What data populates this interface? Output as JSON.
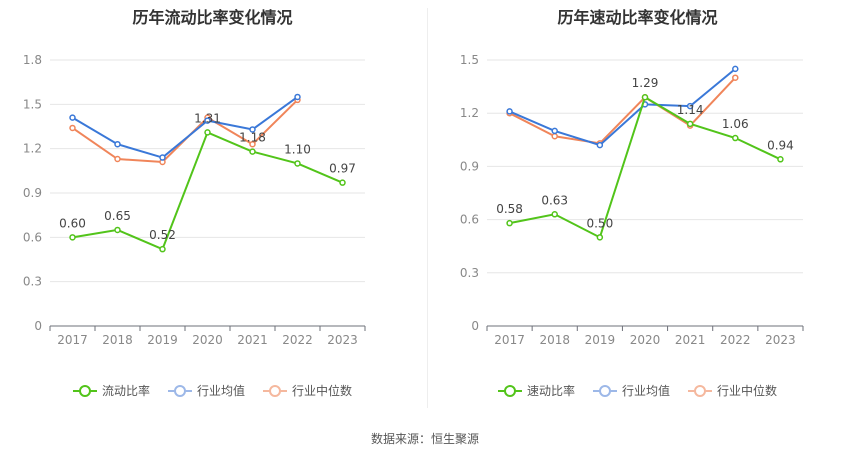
{
  "charts": [
    {
      "title": "历年流动比率变化情况",
      "legend": [
        "流动比率",
        "行业均值",
        "行业中位数"
      ],
      "ytick_labels": [
        "0",
        "0.3",
        "0.6",
        "0.9",
        "1.2",
        "1.5",
        "1.8"
      ]
    },
    {
      "title": "历年速动比率变化情况",
      "legend": [
        "速动比率",
        "行业均值",
        "行业中位数"
      ],
      "ytick_labels": [
        "0",
        "0.3",
        "0.6",
        "0.9",
        "1.2",
        "1.5"
      ]
    }
  ],
  "source": "数据来源：恒生聚源",
  "colors": {
    "primary": "#52c41a",
    "mean": "#3a78d8",
    "median": "#f0855a"
  },
  "chart_data": [
    {
      "type": "line",
      "title": "历年流动比率变化情况",
      "categories": [
        "2017",
        "2018",
        "2019",
        "2020",
        "2021",
        "2022",
        "2023"
      ],
      "ylim": [
        0,
        1.8
      ],
      "yticks": [
        0,
        0.3,
        0.6,
        0.9,
        1.2,
        1.5,
        1.8
      ],
      "grid": true,
      "legend_position": "bottom",
      "series": [
        {
          "name": "流动比率",
          "values": [
            0.6,
            0.65,
            0.52,
            1.31,
            1.18,
            1.1,
            0.97
          ],
          "labels": [
            "0.60",
            "0.65",
            "0.52",
            "1.31",
            "1.18",
            "1.10",
            "0.97"
          ]
        },
        {
          "name": "行业均值",
          "values": [
            1.41,
            1.23,
            1.14,
            1.39,
            1.33,
            1.55,
            null
          ]
        },
        {
          "name": "行业中位数",
          "values": [
            1.34,
            1.13,
            1.11,
            1.41,
            1.23,
            1.53,
            null
          ]
        }
      ]
    },
    {
      "type": "line",
      "title": "历年速动比率变化情况",
      "categories": [
        "2017",
        "2018",
        "2019",
        "2020",
        "2021",
        "2022",
        "2023"
      ],
      "ylim": [
        0,
        1.5
      ],
      "yticks": [
        0,
        0.3,
        0.6,
        0.9,
        1.2,
        1.5
      ],
      "grid": true,
      "legend_position": "bottom",
      "series": [
        {
          "name": "速动比率",
          "values": [
            0.58,
            0.63,
            0.5,
            1.29,
            1.14,
            1.06,
            0.94
          ],
          "labels": [
            "0.58",
            "0.63",
            "0.50",
            "1.29",
            "1.14",
            "1.06",
            "0.94"
          ]
        },
        {
          "name": "行业均值",
          "values": [
            1.21,
            1.1,
            1.02,
            1.25,
            1.24,
            1.45,
            null
          ]
        },
        {
          "name": "行业中位数",
          "values": [
            1.2,
            1.07,
            1.03,
            1.29,
            1.13,
            1.4,
            null
          ]
        }
      ]
    }
  ]
}
